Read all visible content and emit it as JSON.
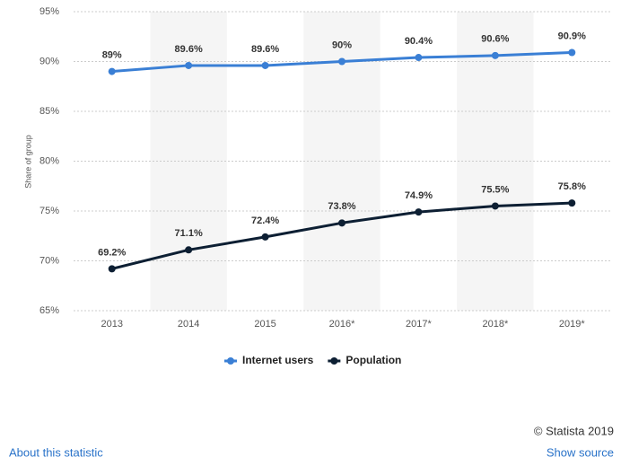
{
  "chart_data": {
    "type": "line",
    "y_label": "Share of group",
    "categories": [
      "2013",
      "2014",
      "2015",
      "2016*",
      "2017*",
      "2018*",
      "2019*"
    ],
    "series": [
      {
        "name": "Internet users",
        "color": "#3a7fd5",
        "values": [
          89,
          89.6,
          89.6,
          90,
          90.4,
          90.6,
          90.9
        ],
        "value_labels": [
          "89%",
          "89.6%",
          "89.6%",
          "90%",
          "90.4%",
          "90.6%",
          "90.9%"
        ]
      },
      {
        "name": "Population",
        "color": "#0d1f33",
        "values": [
          69.2,
          71.1,
          72.4,
          73.8,
          74.9,
          75.5,
          75.8
        ],
        "value_labels": [
          "69.2%",
          "71.1%",
          "72.4%",
          "73.8%",
          "74.9%",
          "75.5%",
          "75.8%"
        ]
      }
    ],
    "ylim": [
      65,
      95
    ],
    "yticks": [
      {
        "value": 65,
        "label": "65%"
      },
      {
        "value": 70,
        "label": "70%"
      },
      {
        "value": 75,
        "label": "75%"
      },
      {
        "value": 80,
        "label": "80%"
      },
      {
        "value": 85,
        "label": "85%"
      },
      {
        "value": 90,
        "label": "90%"
      },
      {
        "value": 95,
        "label": "95%"
      }
    ],
    "grid": true,
    "legend": "bottom"
  },
  "footer": {
    "copyright": "© Statista 2019",
    "about": "About this statistic",
    "source": "Show source"
  }
}
